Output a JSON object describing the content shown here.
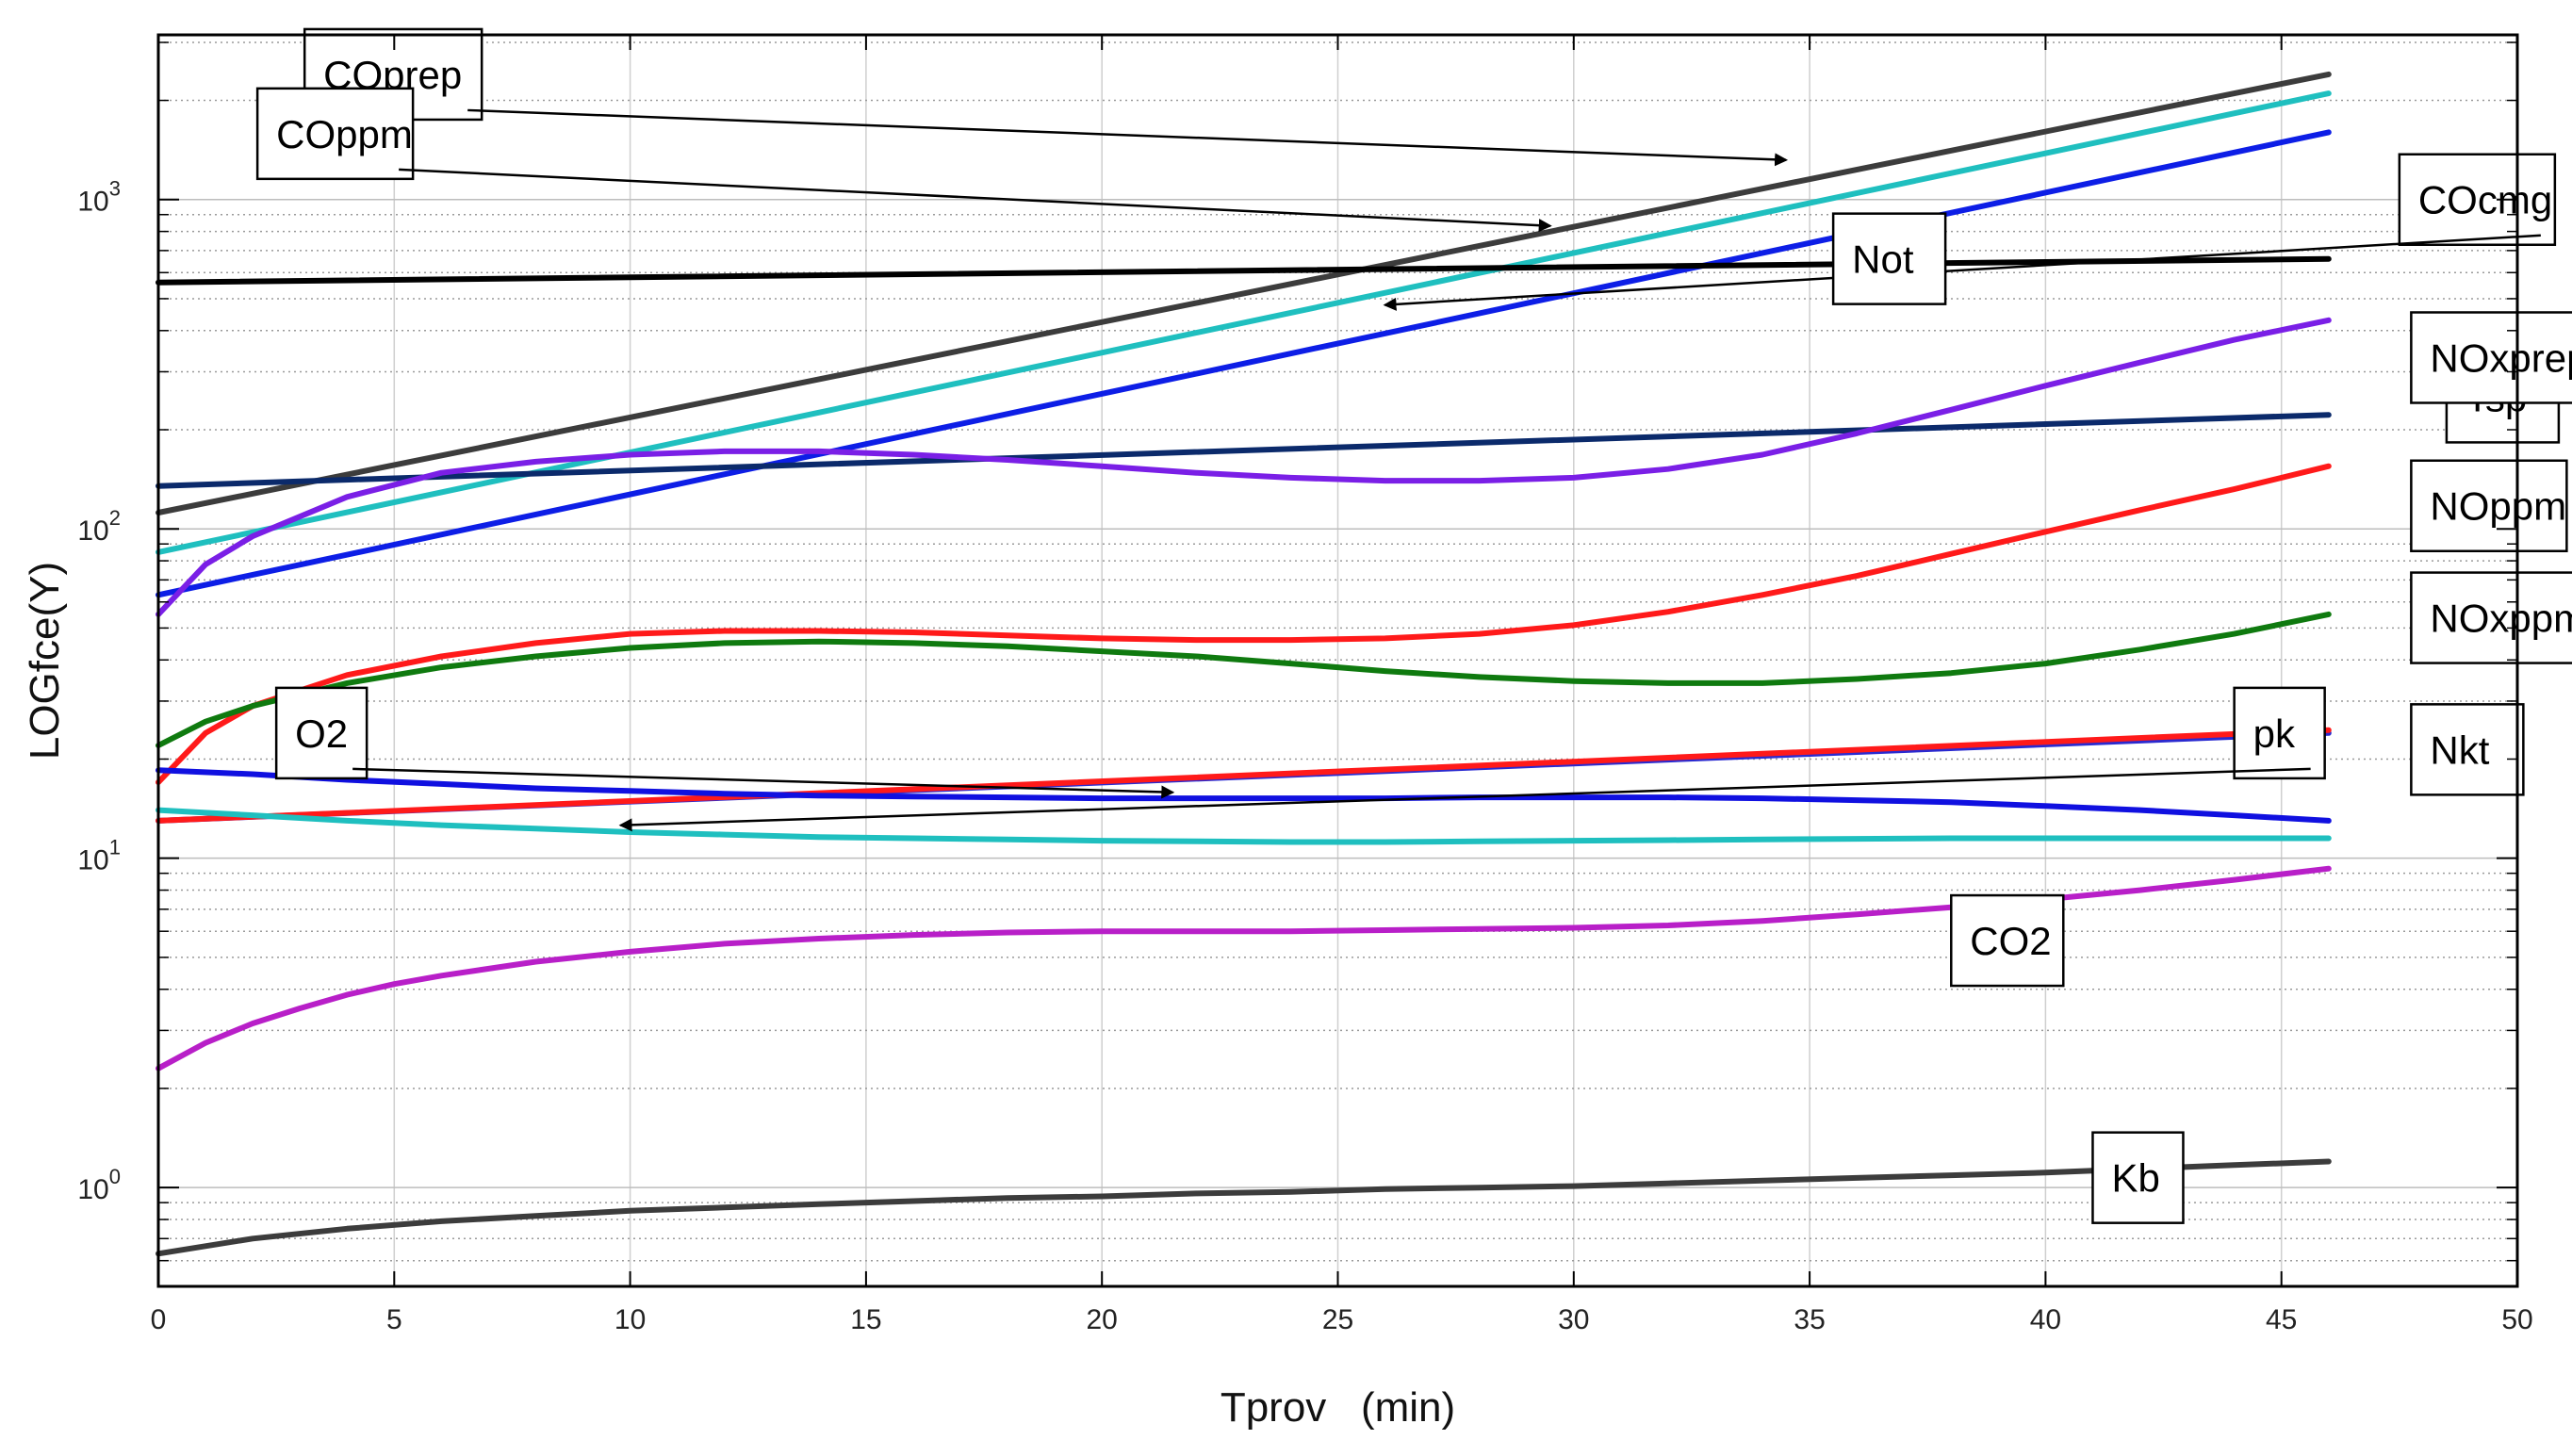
{
  "chart_data": {
    "type": "line",
    "title": "",
    "xlabel": "Tprov   (min)",
    "ylabel": "LOGfce(Y)",
    "xlim": [
      0,
      50
    ],
    "ylim_log10": [
      -0.3,
      3.5
    ],
    "yscale": "log",
    "grid": true,
    "x_ticks": [
      "0",
      "5",
      "10",
      "15",
      "20",
      "25",
      "30",
      "35",
      "40",
      "45",
      "50"
    ],
    "y_ticks": [
      {
        "base": "10",
        "exp": "0"
      },
      {
        "base": "10",
        "exp": "1"
      },
      {
        "base": "10",
        "exp": "2"
      },
      {
        "base": "10",
        "exp": "3"
      }
    ],
    "series": [
      {
        "name": "COprep",
        "color": "#3c3c3c",
        "x": [
          0,
          46
        ],
        "y": [
          112,
          2400
        ]
      },
      {
        "name": "COppm",
        "color": "#1fbfbf",
        "x": [
          0,
          46
        ],
        "y": [
          85,
          2100
        ]
      },
      {
        "name": "COcmg",
        "color": "#0d1ee6",
        "x": [
          0,
          46
        ],
        "y": [
          63,
          1600
        ]
      },
      {
        "name": "Not",
        "color": "#000000",
        "x": [
          0,
          46
        ],
        "y": [
          560,
          660
        ]
      },
      {
        "name": "Tsp",
        "color": "#0b2a6b",
        "x": [
          0,
          46
        ],
        "y": [
          135,
          222
        ]
      },
      {
        "name": "NOxprep",
        "color": "#7a1fe6",
        "x": [
          0,
          1,
          2,
          4,
          6,
          8,
          10,
          12,
          14,
          16,
          18,
          20,
          22,
          24,
          26,
          28,
          30,
          32,
          34,
          36,
          38,
          40,
          42,
          44,
          46
        ],
        "y": [
          55,
          78,
          95,
          125,
          148,
          160,
          168,
          172,
          172,
          168,
          162,
          155,
          148,
          143,
          140,
          140,
          143,
          152,
          168,
          195,
          230,
          272,
          320,
          375,
          430
        ]
      },
      {
        "name": "NOppm",
        "color": "#ff1a1a",
        "x": [
          0,
          1,
          2,
          4,
          6,
          8,
          10,
          12,
          14,
          16,
          18,
          20,
          22,
          24,
          26,
          28,
          30,
          32,
          34,
          36,
          38,
          40,
          42,
          44,
          46
        ],
        "y": [
          17,
          24,
          29,
          36,
          41,
          45,
          48,
          49,
          49,
          48.5,
          47.5,
          46.5,
          46,
          46,
          46.5,
          48,
          51,
          56,
          63,
          72,
          84,
          98,
          114,
          132,
          155
        ]
      },
      {
        "name": "NOxppm",
        "color": "#0f7a0f",
        "x": [
          0,
          1,
          2,
          4,
          6,
          8,
          10,
          12,
          14,
          16,
          18,
          20,
          22,
          24,
          26,
          28,
          30,
          32,
          34,
          36,
          38,
          40,
          42,
          44,
          46
        ],
        "y": [
          22,
          26,
          29,
          34,
          38,
          41,
          43.5,
          45,
          45.5,
          45,
          44,
          42.5,
          41,
          39,
          37,
          35.5,
          34.5,
          34,
          34,
          35,
          36.5,
          39,
          43,
          48,
          55
        ]
      },
      {
        "name": "Nkt",
        "color": "#2a2ad0",
        "x": [
          0,
          46
        ],
        "y": [
          13,
          24
        ]
      },
      {
        "name": "O2",
        "color": "#ff1a1a",
        "x": [
          0,
          46
        ],
        "y": [
          13,
          24.5
        ]
      },
      {
        "name": "pk",
        "color": "#1fbfbf",
        "x": [
          0,
          2,
          4,
          6,
          8,
          10,
          12,
          14,
          16,
          18,
          20,
          22,
          24,
          26,
          28,
          30,
          32,
          34,
          36,
          38,
          40,
          42,
          44,
          46
        ],
        "y": [
          14,
          13.5,
          13,
          12.6,
          12.3,
          12,
          11.8,
          11.6,
          11.5,
          11.4,
          11.3,
          11.25,
          11.2,
          11.2,
          11.25,
          11.3,
          11.35,
          11.4,
          11.45,
          11.5,
          11.5,
          11.5,
          11.5,
          11.5
        ]
      },
      {
        "name": "",
        "color": "#1010e0",
        "x": [
          0,
          2,
          4,
          6,
          8,
          10,
          12,
          14,
          16,
          18,
          20,
          22,
          24,
          26,
          28,
          30,
          32,
          34,
          36,
          38,
          40,
          42,
          44,
          46
        ],
        "y": [
          18.5,
          18,
          17.3,
          16.8,
          16.3,
          16,
          15.7,
          15.5,
          15.4,
          15.3,
          15.2,
          15.2,
          15.2,
          15.2,
          15.3,
          15.3,
          15.3,
          15.2,
          15,
          14.8,
          14.4,
          14,
          13.5,
          13
        ]
      },
      {
        "name": "CO2",
        "color": "#b81fc8",
        "x": [
          0,
          1,
          2,
          3,
          4,
          5,
          6,
          8,
          10,
          12,
          14,
          16,
          18,
          20,
          22,
          24,
          26,
          28,
          30,
          32,
          34,
          36,
          38,
          40,
          42,
          44,
          46
        ],
        "y": [
          2.3,
          2.75,
          3.15,
          3.5,
          3.85,
          4.15,
          4.4,
          4.85,
          5.2,
          5.5,
          5.7,
          5.85,
          5.95,
          6.0,
          6.0,
          6.0,
          6.05,
          6.1,
          6.15,
          6.25,
          6.45,
          6.75,
          7.1,
          7.5,
          8.0,
          8.6,
          9.3
        ]
      },
      {
        "name": "Kb",
        "color": "#3c3c3c",
        "x": [
          0,
          2,
          4,
          6,
          8,
          10,
          12,
          14,
          16,
          18,
          20,
          22,
          24,
          26,
          28,
          30,
          32,
          34,
          36,
          38,
          40,
          42,
          44,
          46
        ],
        "y": [
          0.63,
          0.7,
          0.75,
          0.79,
          0.82,
          0.85,
          0.87,
          0.89,
          0.91,
          0.93,
          0.94,
          0.96,
          0.97,
          0.99,
          1.0,
          1.01,
          1.03,
          1.05,
          1.07,
          1.09,
          1.11,
          1.14,
          1.17,
          1.2
        ]
      }
    ],
    "annotations": [
      {
        "text": "COprep",
        "box": [
          3.1,
          3.38
        ],
        "arrow_to": [
          34.5,
          3.12
        ]
      },
      {
        "text": "COppm",
        "box": [
          2.1,
          3.2
        ],
        "arrow_to": [
          29.5,
          2.92
        ]
      },
      {
        "text": "COcmg",
        "box": [
          -5,
          3.0
        ],
        "arrow_to": [
          26,
          2.68
        ]
      },
      {
        "text": "Not",
        "box": [
          -29,
          2.82
        ]
      },
      {
        "text": "Tsp",
        "box": [
          -3,
          2.4
        ]
      },
      {
        "text": "NOxprep",
        "box": [
          -4.5,
          2.52
        ]
      },
      {
        "text": "NOppm",
        "box": [
          -4.5,
          2.07
        ]
      },
      {
        "text": "NOxppm",
        "box": [
          -4.5,
          1.73
        ]
      },
      {
        "text": "Nkt",
        "box": [
          -4.5,
          1.33
        ]
      },
      {
        "text": "O2",
        "box": [
          2.5,
          1.38
        ],
        "arrow_to": [
          21.5,
          1.2
        ]
      },
      {
        "text": "pk",
        "box": [
          -12,
          1.38
        ],
        "arrow_to": [
          9.8,
          1.1
        ]
      },
      {
        "text": "CO2",
        "box": [
          -24,
          0.75
        ]
      },
      {
        "text": "Kb",
        "box": [
          -18,
          0.03
        ]
      }
    ]
  }
}
